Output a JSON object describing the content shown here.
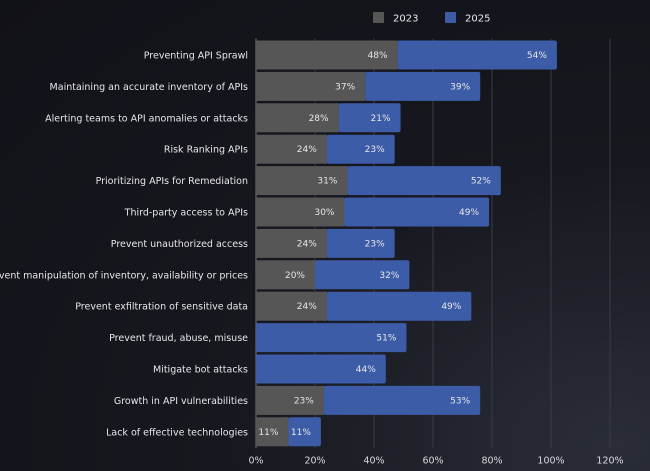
{
  "chart_data": {
    "type": "bar",
    "orientation": "horizontal",
    "stacked": true,
    "categories": [
      "Preventing API Sprawl",
      "Maintaining an accurate inventory of APIs",
      "Alerting teams to API anomalies or attacks",
      "Risk Ranking APIs",
      "Prioritizing APIs for Remediation",
      "Third-party access to APIs",
      "Prevent unauthorized access",
      "Prevent manipulation of inventory, availability or prices",
      "Prevent exfiltration of sensitive data",
      "Prevent fraud, abuse, misuse",
      "Mitigate bot attacks",
      "Growth in API vulnerabilities",
      "Lack of effective technologies"
    ],
    "series": [
      {
        "name": "2023",
        "color": "#565656",
        "values": [
          48,
          37,
          28,
          24,
          31,
          30,
          24,
          20,
          24,
          null,
          null,
          23,
          11
        ]
      },
      {
        "name": "2025",
        "color": "#3d5ca8",
        "values": [
          54,
          39,
          21,
          23,
          52,
          49,
          23,
          32,
          49,
          51,
          44,
          53,
          11
        ]
      }
    ],
    "xlim": [
      0,
      120
    ],
    "xticks": [
      "0%",
      "20%",
      "40%",
      "60%",
      "80%",
      "100%",
      "120%"
    ],
    "grid": true,
    "legend": "top"
  }
}
